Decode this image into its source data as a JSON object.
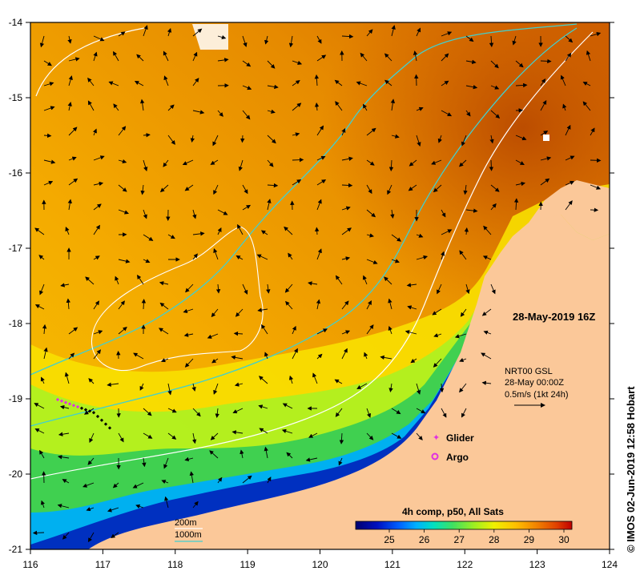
{
  "map": {
    "date_label": "28-May-2019 16Z",
    "current_source": "NRT00 GSL",
    "current_time": "28-May 00:00Z",
    "vector_scale_label": "0.5m/s (1kt 24h)",
    "credit": "© IMOS 02-Jun-2019 12:58 Hobart",
    "lon_ticks": [
      "116",
      "117",
      "118",
      "119",
      "120",
      "121",
      "122",
      "123",
      "124"
    ],
    "lat_ticks": [
      "-14",
      "-15",
      "-16",
      "-17",
      "-18",
      "-19",
      "-20",
      "-21"
    ],
    "legend": {
      "glider": "Glider",
      "argo": "Argo",
      "depth_200": "200m",
      "depth_1000": "1000m"
    },
    "colorbar": {
      "title": "4h comp, p50, All Sats",
      "ticks": [
        "25",
        "26",
        "27",
        "28",
        "29",
        "30"
      ],
      "colors": [
        "#000070",
        "#0010c0",
        "#0060ff",
        "#00b0ff",
        "#00e0c0",
        "#40e060",
        "#a0f020",
        "#f0f000",
        "#ffc000",
        "#f08000",
        "#e04000",
        "#c00000"
      ]
    },
    "colors": {
      "land": "#fbc899",
      "contour_200m": "#ffffff",
      "contour_1000m": "#40d0d0",
      "glider_marker": "#e030e0",
      "argo_marker": "#e030e0"
    }
  }
}
